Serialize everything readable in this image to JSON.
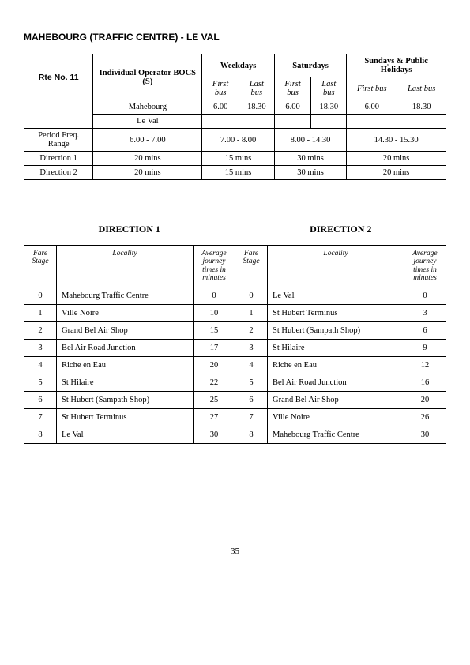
{
  "title": "MAHEBOURG (TRAFFIC CENTRE) - LE VAL",
  "header": {
    "route_label": "Rte No. 11",
    "operator_label": "Individual Operator BOCS (S)",
    "day_cols": [
      "Weekdays",
      "Saturdays",
      "Sundays & Public Holidays"
    ],
    "sub_cols": [
      "First bus",
      "Last bus"
    ],
    "terminals": [
      "Mahebourg",
      "Le Val"
    ],
    "terminal_times": {
      "Mahebourg": [
        "6.00",
        "18.30",
        "6.00",
        "18.30",
        "6.00",
        "18.30"
      ],
      "Le Val": [
        "",
        "",
        "",
        "",
        "",
        ""
      ]
    },
    "rows": [
      {
        "label": "Period Freq. Range",
        "col1": "6.00 - 7.00",
        "vals": [
          "7.00 - 8.00",
          "8.00 - 14.30",
          "14.30 - 15.30"
        ]
      },
      {
        "label": "Direction 1",
        "col1": "20 mins",
        "vals": [
          "15 mins",
          "30 mins",
          "20 mins"
        ]
      },
      {
        "label": "Direction 2",
        "col1": "20 mins",
        "vals": [
          "15 mins",
          "30 mins",
          "20 mins"
        ]
      }
    ]
  },
  "dir_titles": [
    "DIRECTION  1",
    "DIRECTION  2"
  ],
  "stage_headers": {
    "fare_stage": "Fare Stage",
    "locality": "Locality",
    "avg": "Average journey times in minutes"
  },
  "stages": [
    {
      "fs1": 0,
      "loc1": "Mahebourg Traffic Centre",
      "t1": 0,
      "fs2": 0,
      "loc2": "Le Val",
      "t2": 0
    },
    {
      "fs1": 1,
      "loc1": "Ville Noire",
      "t1": 10,
      "fs2": 1,
      "loc2": "St Hubert Terminus",
      "t2": 3
    },
    {
      "fs1": 2,
      "loc1": "Grand Bel Air Shop",
      "t1": 15,
      "fs2": 2,
      "loc2": "St Hubert (Sampath Shop)",
      "t2": 6
    },
    {
      "fs1": 3,
      "loc1": "Bel Air Road Junction",
      "t1": 17,
      "fs2": 3,
      "loc2": "St Hilaire",
      "t2": 9
    },
    {
      "fs1": 4,
      "loc1": "Riche en Eau",
      "t1": 20,
      "fs2": 4,
      "loc2": "Riche en Eau",
      "t2": 12
    },
    {
      "fs1": 5,
      "loc1": "St Hilaire",
      "t1": 22,
      "fs2": 5,
      "loc2": "Bel Air Road Junction",
      "t2": 16
    },
    {
      "fs1": 6,
      "loc1": "St Hubert (Sampath Shop)",
      "t1": 25,
      "fs2": 6,
      "loc2": "Grand Bel Air Shop",
      "t2": 20
    },
    {
      "fs1": 7,
      "loc1": "St Hubert Terminus",
      "t1": 27,
      "fs2": 7,
      "loc2": "Ville Noire",
      "t2": 26
    },
    {
      "fs1": 8,
      "loc1": "Le Val",
      "t1": 30,
      "fs2": 8,
      "loc2": "Mahebourg Traffic Centre",
      "t2": 30
    }
  ],
  "page_number": "35"
}
